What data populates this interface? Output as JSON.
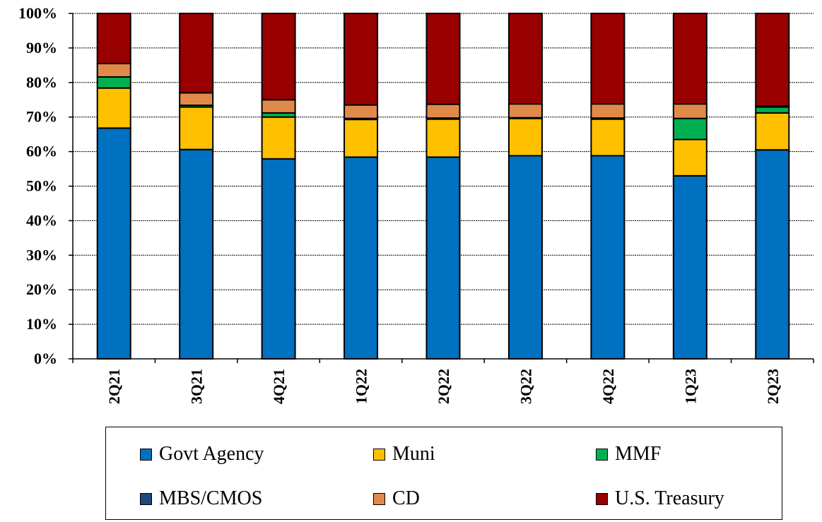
{
  "chart_data": {
    "type": "bar",
    "stacked": true,
    "categories": [
      "2Q21",
      "3Q21",
      "4Q21",
      "1Q22",
      "2Q22",
      "3Q22",
      "4Q22",
      "1Q23",
      "2Q23"
    ],
    "y_tick_labels": [
      "0%",
      "10%",
      "20%",
      "30%",
      "40%",
      "50%",
      "60%",
      "70%",
      "80%",
      "90%",
      "100%"
    ],
    "ylim": [
      0,
      100
    ],
    "grid": true,
    "legend_position": "bottom",
    "series": [
      {
        "name": "Govt Agency",
        "color": "#0070C0",
        "values": [
          66.8,
          60.6,
          57.9,
          58.4,
          58.4,
          58.8,
          58.8,
          53.0,
          60.5
        ]
      },
      {
        "name": "Muni",
        "color": "#FFC000",
        "values": [
          11.6,
          12.3,
          12.1,
          10.9,
          11.0,
          10.8,
          10.6,
          10.5,
          10.7
        ]
      },
      {
        "name": "MMF",
        "color": "#00B050",
        "values": [
          3.2,
          0.5,
          1.2,
          0.3,
          0.3,
          0.2,
          0.3,
          6.1,
          1.7
        ]
      },
      {
        "name": "MBS/CMOS",
        "color": "#1F497D",
        "values": [
          0,
          0,
          0,
          0,
          0,
          0,
          0,
          0,
          0
        ]
      },
      {
        "name": "CD",
        "color": "#E08A4A",
        "values": [
          3.9,
          3.6,
          3.8,
          3.9,
          4.0,
          4.0,
          4.1,
          4.2,
          0.3
        ]
      },
      {
        "name": "U.S. Treasury",
        "color": "#990000",
        "values": [
          14.5,
          23.0,
          25.0,
          26.5,
          26.3,
          26.2,
          26.2,
          26.2,
          26.8
        ]
      }
    ]
  },
  "legend": {
    "items": [
      {
        "label": "Govt Agency",
        "color": "#0070C0"
      },
      {
        "label": "Muni",
        "color": "#FFC000"
      },
      {
        "label": "MMF",
        "color": "#00B050"
      },
      {
        "label": "MBS/CMOS",
        "color": "#1F497D"
      },
      {
        "label": "CD",
        "color": "#E08A4A"
      },
      {
        "label": "U.S. Treasury",
        "color": "#990000"
      }
    ]
  }
}
